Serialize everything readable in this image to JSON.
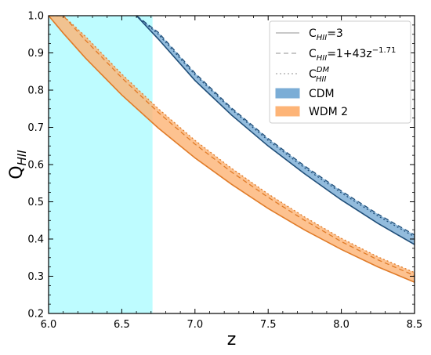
{
  "chart_data": {
    "type": "area",
    "xlabel": "z",
    "ylabel": "Q_HII",
    "xlim": [
      6.0,
      8.5
    ],
    "ylim": [
      0.2,
      1.0
    ],
    "x_ticks": [
      "6.0",
      "6.5",
      "7.0",
      "7.5",
      "8.0",
      "8.5"
    ],
    "y_ticks": [
      "0.2",
      "0.3",
      "0.4",
      "0.5",
      "0.6",
      "0.7",
      "0.8",
      "0.9",
      "1.0"
    ],
    "grid": false,
    "legend_position": "top-right",
    "shaded_region": {
      "x_start": 6.0,
      "x_end": 6.71,
      "color": "#b3fbff"
    },
    "legend": [
      {
        "label_main": "C",
        "label_sub": "HII",
        "label_rest": "=3",
        "style": "solid",
        "color": "#c0c0c0"
      },
      {
        "label_main": "C",
        "label_sub": "HII",
        "label_rest": "=1+43z",
        "label_sup": "−1.71",
        "style": "dashed",
        "color": "#c0c0c0"
      },
      {
        "label_main": "C",
        "label_sub": "HII",
        "label_sup": "DM",
        "style": "dotted",
        "color": "#c0c0c0"
      },
      {
        "label_main": "CDM",
        "style": "patch",
        "color": "#7badd6"
      },
      {
        "label_main": "WDM 2",
        "style": "patch",
        "color": "#fdb477"
      }
    ],
    "series": [
      {
        "name": "CDM",
        "fill_color": "#7badd6",
        "line_color": "#1f4e79",
        "x": [
          6.6,
          6.75,
          7.0,
          7.25,
          7.5,
          7.75,
          8.0,
          8.25,
          8.5
        ],
        "solid": [
          1.0,
          0.937,
          0.826,
          0.733,
          0.65,
          0.575,
          0.505,
          0.442,
          0.385
        ],
        "dashed": [
          1.0,
          0.955,
          0.846,
          0.752,
          0.67,
          0.596,
          0.529,
          0.467,
          0.411
        ],
        "dotted": [
          1.0,
          0.95,
          0.841,
          0.748,
          0.665,
          0.591,
          0.524,
          0.462,
          0.406
        ]
      },
      {
        "name": "WDM 2",
        "fill_color": "#fdb477",
        "line_color": "#e07b28",
        "x": [
          6.0,
          6.1,
          6.25,
          6.5,
          6.75,
          7.0,
          7.25,
          7.5,
          7.75,
          8.0,
          8.25,
          8.5
        ],
        "solid": [
          1.0,
          0.953,
          0.887,
          0.787,
          0.698,
          0.618,
          0.547,
          0.482,
          0.424,
          0.372,
          0.325,
          0.284
        ],
        "dashed": [
          1.0,
          1.0,
          0.935,
          0.833,
          0.74,
          0.655,
          0.58,
          0.512,
          0.45,
          0.393,
          0.344,
          0.302
        ],
        "dotted": [
          1.0,
          1.0,
          0.945,
          0.843,
          0.75,
          0.665,
          0.59,
          0.521,
          0.459,
          0.402,
          0.352,
          0.31
        ]
      }
    ]
  }
}
